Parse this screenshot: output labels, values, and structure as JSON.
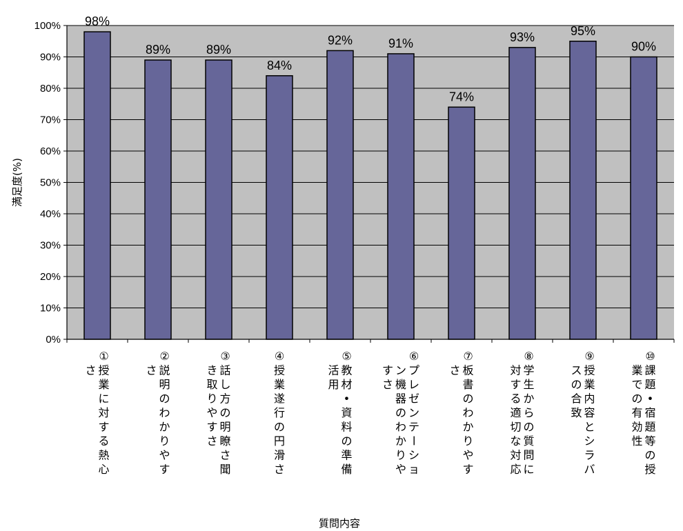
{
  "chart_data": {
    "type": "bar",
    "title": "",
    "xlabel": "質問内容",
    "ylabel": "満足度(%)",
    "ylim": [
      0,
      100
    ],
    "ytick_step": 10,
    "ytick_labels": [
      "0%",
      "10%",
      "20%",
      "30%",
      "40%",
      "50%",
      "60%",
      "70%",
      "80%",
      "90%",
      "100%"
    ],
    "grid": true,
    "legend": "none",
    "colors": {
      "bar": "#666699",
      "plot_background": "#C0C0C0",
      "bar_outline": "#000000"
    },
    "categories": [
      "①授業に対する熱心さ",
      "②説明のわかりやすさ",
      "③話し方の明瞭さ聞き取りやすさ",
      "④授業遂行の円滑さ",
      "⑤教材・資料の準備活用",
      "⑥プレゼンテーション機器のわかりやすさ",
      "⑦板書のわかりやすさ",
      "⑧学生からの質問に対する適切な対応",
      "⑨授業内容とシラバスの合致",
      "⑩課題・宿題等の授業での有効性"
    ],
    "values": [
      98,
      89,
      89,
      84,
      92,
      91,
      74,
      93,
      95,
      90
    ],
    "data_labels": [
      "98%",
      "89%",
      "89%",
      "84%",
      "92%",
      "91%",
      "74%",
      "93%",
      "95%",
      "90%"
    ]
  }
}
